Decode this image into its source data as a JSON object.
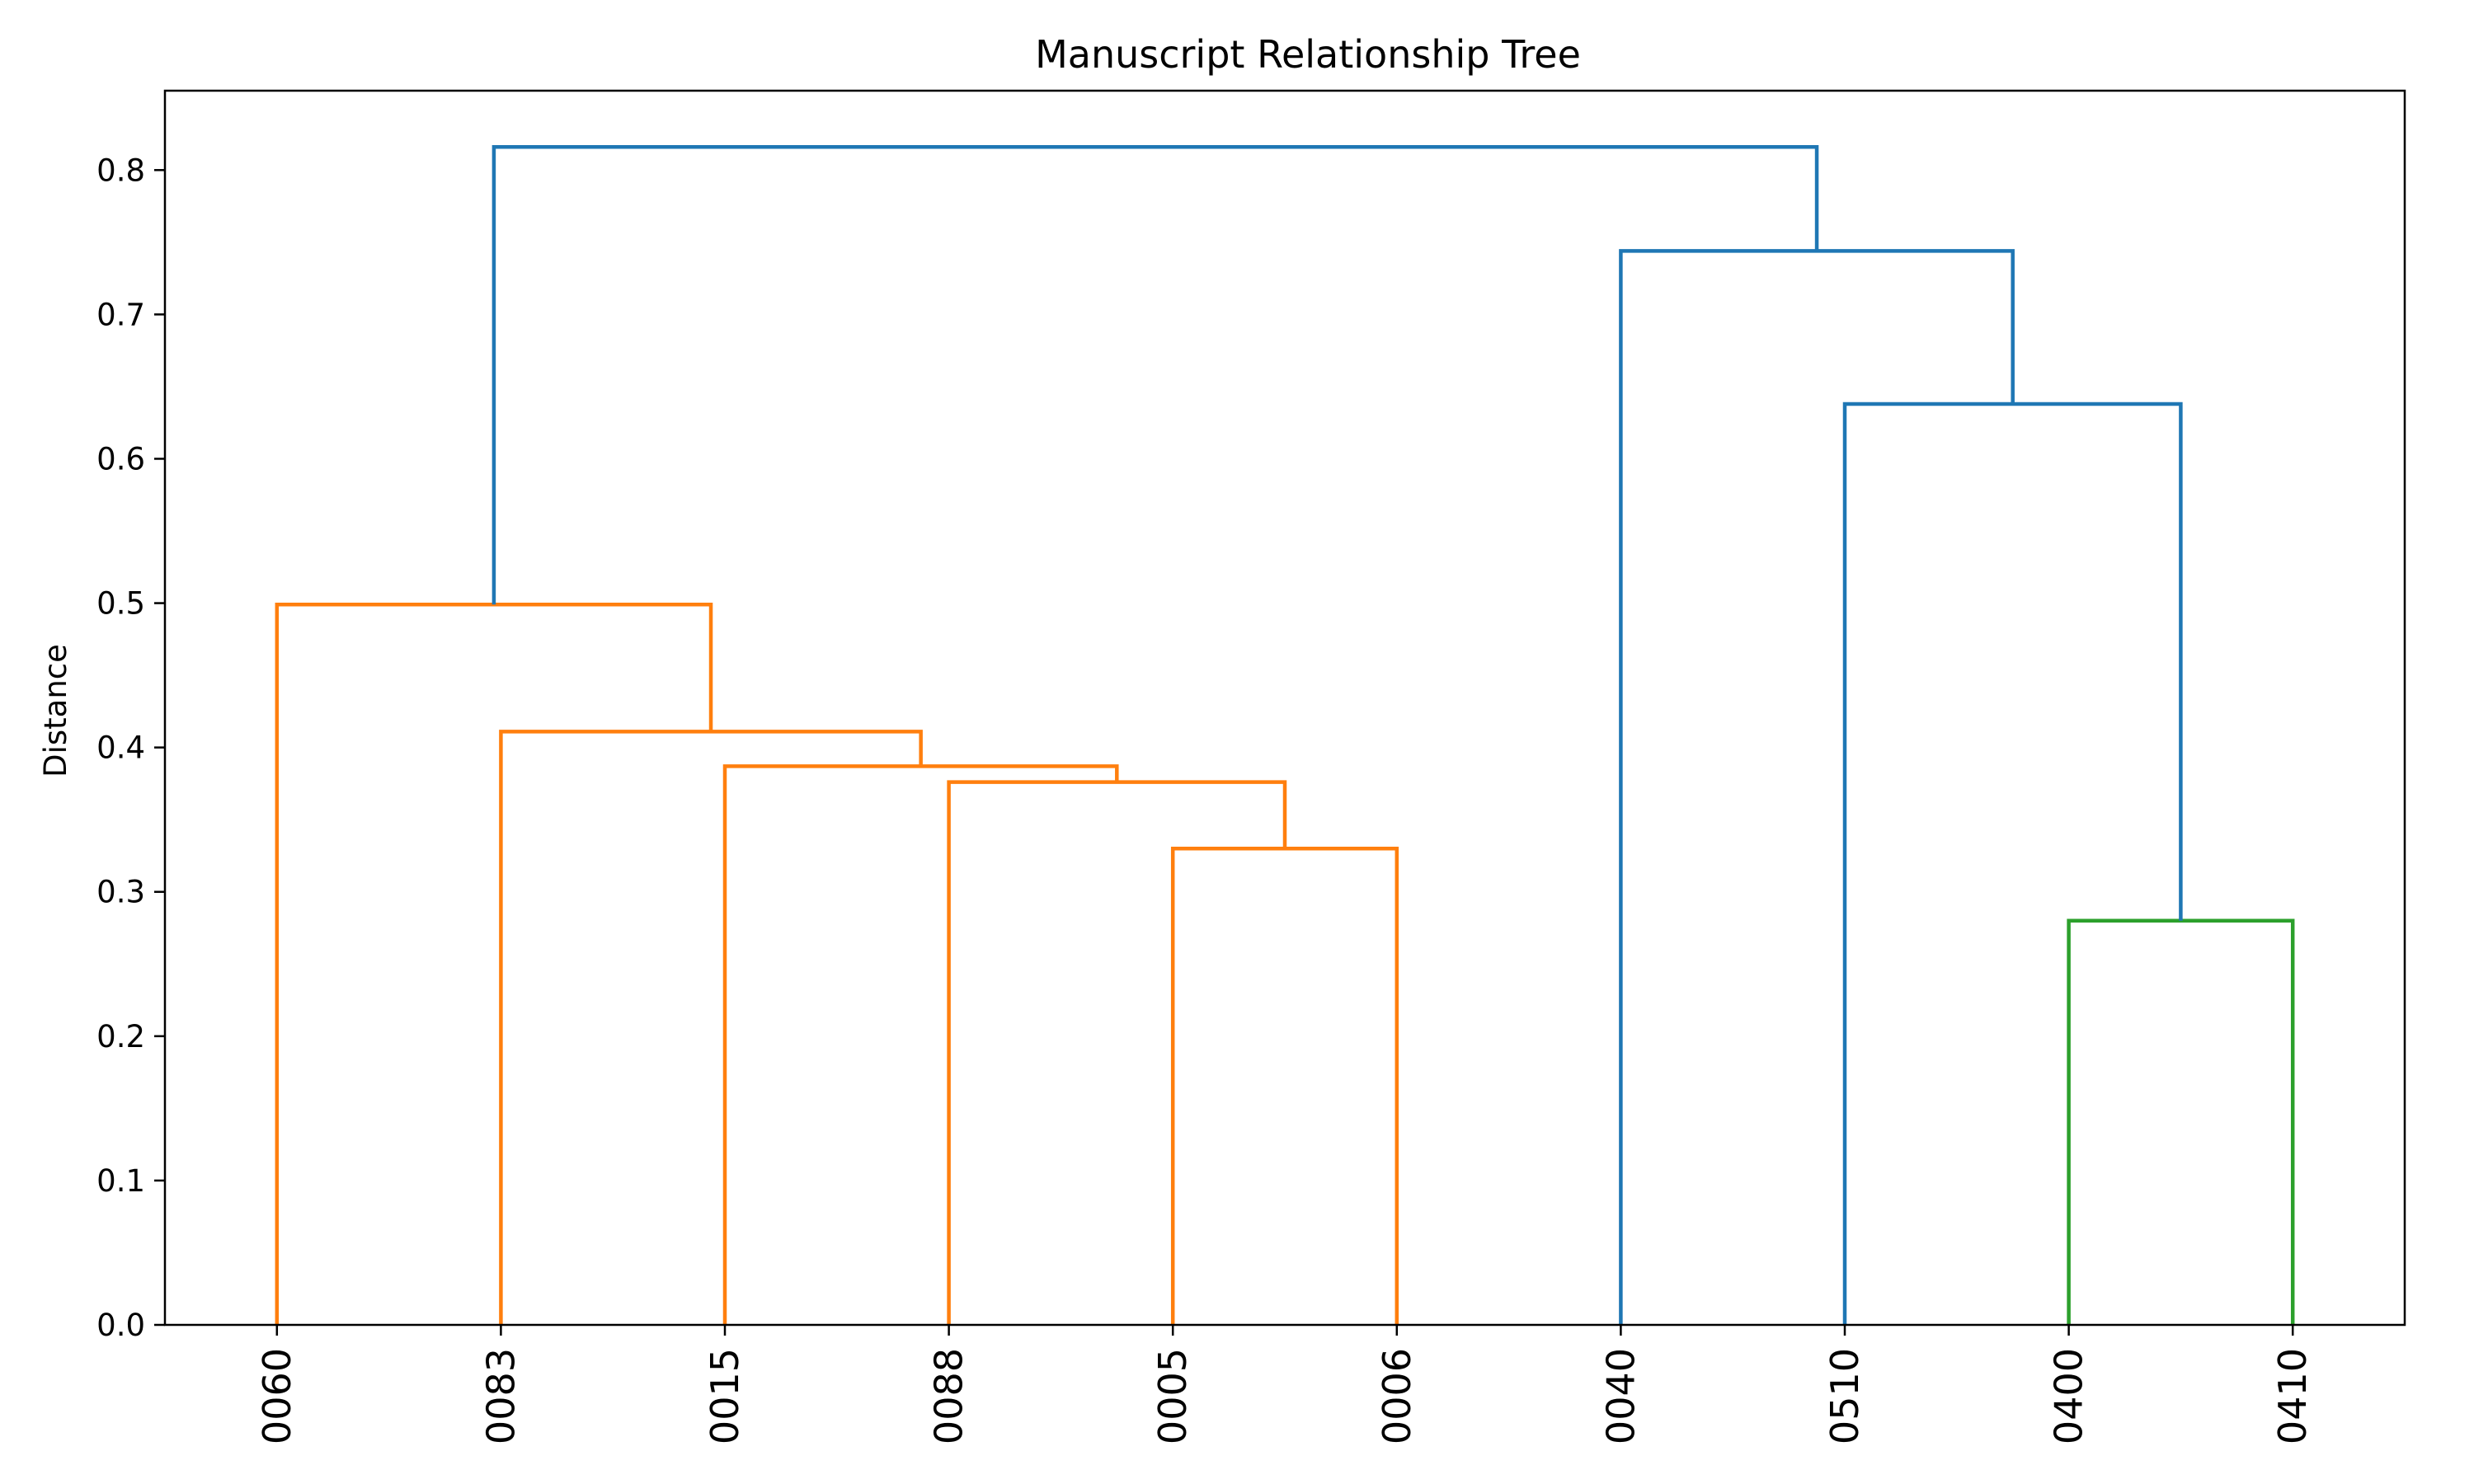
{
  "chart_data": {
    "type": "dendrogram",
    "title": "Manuscript Relationship Tree",
    "xlabel": "",
    "ylabel": "Distance",
    "ylim": [
      0,
      0.855
    ],
    "yticks": [
      0.0,
      0.1,
      0.2,
      0.3,
      0.4,
      0.5,
      0.6,
      0.7,
      0.8
    ],
    "ytick_labels": [
      "0.0",
      "0.1",
      "0.2",
      "0.3",
      "0.4",
      "0.5",
      "0.6",
      "0.7",
      "0.8"
    ],
    "leaves": [
      "0060",
      "0083",
      "0015",
      "0088",
      "0005",
      "0006",
      "0040",
      "0510",
      "0400",
      "0410"
    ],
    "grid": false,
    "legend": "none",
    "colors": {
      "cluster_1": "#ff7f0e",
      "cluster_2": "#2ca02c",
      "above_threshold": "#1f77b4"
    },
    "links": [
      {
        "left": 4,
        "right": 5,
        "height": 0.33,
        "color": "cluster_1"
      },
      {
        "left": 3,
        "right": 4.5,
        "height": 0.376,
        "color": "cluster_1"
      },
      {
        "left": 2,
        "right": 3.75,
        "height": 0.387,
        "color": "cluster_1"
      },
      {
        "left": 1,
        "right": 2.875,
        "height": 0.411,
        "color": "cluster_1"
      },
      {
        "left": 0,
        "right": 1.9375,
        "height": 0.499,
        "color": "cluster_1"
      },
      {
        "left": 8,
        "right": 9,
        "height": 0.28,
        "color": "cluster_2"
      },
      {
        "left": 7,
        "right": 8.5,
        "height": 0.638,
        "color": "above_threshold"
      },
      {
        "left": 6,
        "right": 7.75,
        "height": 0.744,
        "color": "above_threshold"
      },
      {
        "left": 0.96875,
        "right": 6.875,
        "height": 0.816,
        "color": "above_threshold"
      }
    ]
  }
}
